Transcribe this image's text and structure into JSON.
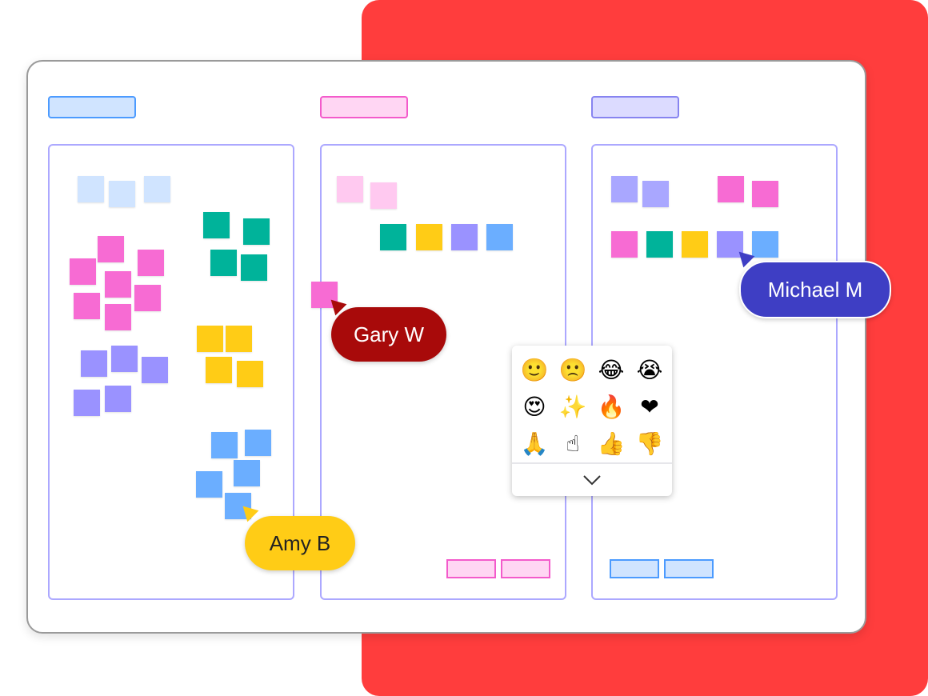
{
  "colors": {
    "background": "#FF3D3D",
    "pink": "#F76BD3",
    "purple": "#9A92FF",
    "teal": "#00B39A",
    "yellow": "#FFCC16",
    "blue": "#6BAEFF",
    "light_blue": "#D0E4FF",
    "light_pink": "#FFC9F0",
    "lavender": "#A9A7FF"
  },
  "columns": [
    {
      "header_color": "#D0E4FF",
      "header_border": "#4C9BFF"
    },
    {
      "header_color": "#FFD6F3",
      "header_border": "#F35BCB"
    },
    {
      "header_color": "#DCDBFF",
      "header_border": "#8784F0"
    }
  ],
  "cursors": [
    {
      "name": "Gary W",
      "color": "#A80A0A"
    },
    {
      "name": "Amy B",
      "color": "#FFCC16"
    },
    {
      "name": "Michael M",
      "color": "#3E3EC4"
    }
  ],
  "emoji_picker": {
    "emojis": [
      "🙂",
      "🙁",
      "😂",
      "😭",
      "😍",
      "✨",
      "🔥",
      "❤",
      "🙏",
      "☝",
      "👍",
      "👎"
    ],
    "expand_icon": "chevron-down-icon"
  }
}
